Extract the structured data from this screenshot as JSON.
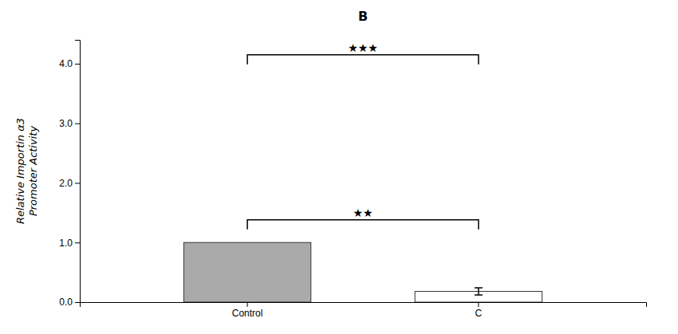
{
  "chart_data": {
    "type": "bar",
    "title": "B",
    "categories": [
      "Control",
      "C"
    ],
    "values": [
      1.0,
      0.18
    ],
    "errors": [
      0.0,
      0.06
    ],
    "colors": [
      "#aaaaaa",
      "white"
    ],
    "ylabel": "Relative Importin α3\nPromoter Activity",
    "ylim": [
      0,
      4.4
    ],
    "yticks": [
      {
        "value": 0.0,
        "label": "0.0"
      },
      {
        "value": 1.0,
        "label": "1.0"
      },
      {
        "value": 2.0,
        "label": "2.0"
      },
      {
        "value": 3.0,
        "label": "3.0"
      },
      {
        "value": 4.0,
        "label": "4.0"
      }
    ],
    "annotations": [
      {
        "text": "★★★",
        "y": 4.15
      },
      {
        "text": "★★",
        "y": 1.38
      }
    ],
    "grid": false
  }
}
